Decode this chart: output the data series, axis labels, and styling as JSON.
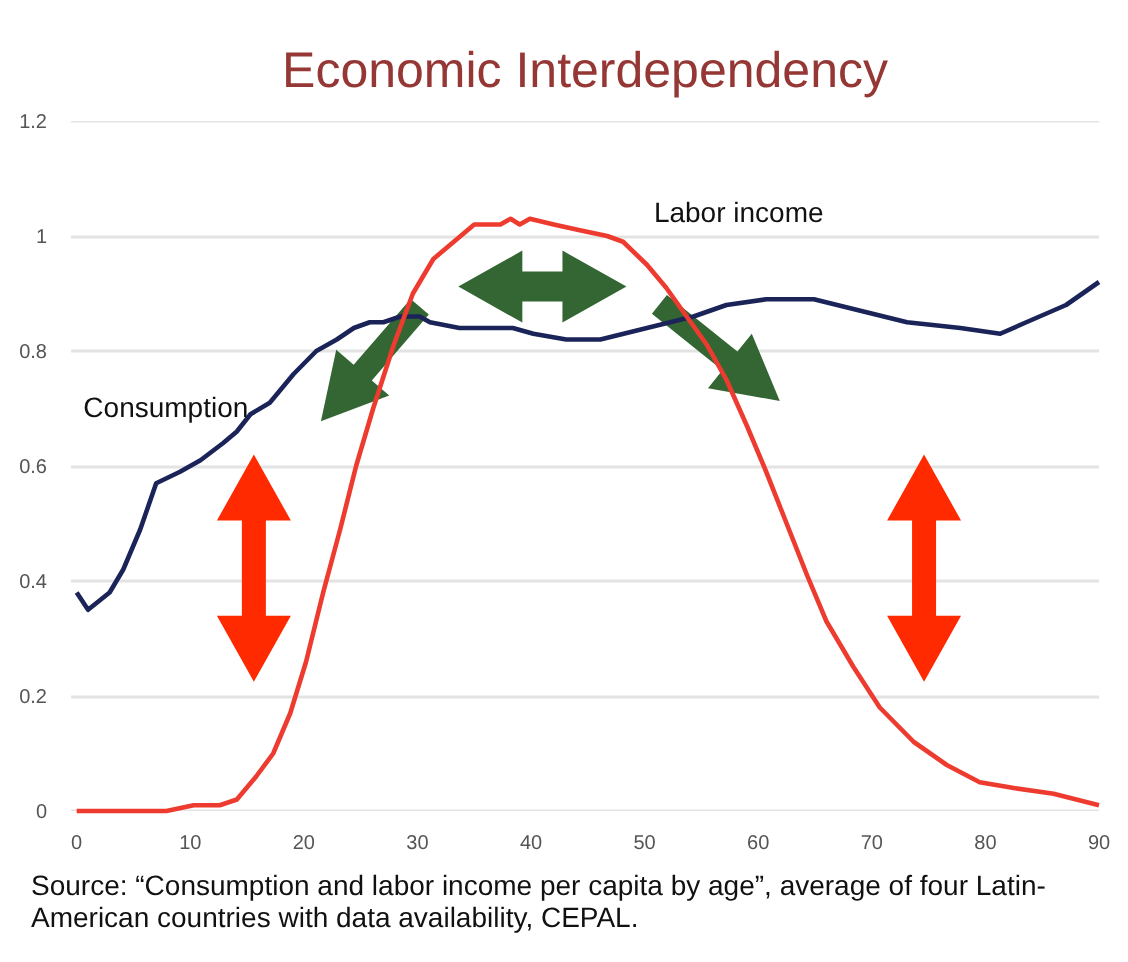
{
  "chart_data": {
    "type": "line",
    "title": "Economic Interdependency",
    "annotations": [
      "Source: “Consumption and labor income per capita by age”, average of four Latin-American countries with data availability, CEPAL."
    ],
    "series": [
      {
        "name": "Consumption",
        "color": "#1b2459",
        "x": [
          0,
          1,
          2.9,
          4.1,
          5.6,
          7,
          9.1,
          10.9,
          12.9,
          14.1,
          15.3,
          17,
          19.1,
          21.1,
          22.9,
          24.4,
          25.8,
          27,
          28.5,
          30.2,
          31.1,
          33.7,
          36.7,
          38.4,
          40.2,
          43.1,
          46.1,
          50.2,
          54.3,
          57.2,
          60.7,
          64.9,
          69,
          73.1,
          77.8,
          81.3,
          83.6,
          87.1,
          90
        ],
        "values": [
          0.38,
          0.35,
          0.38,
          0.42,
          0.49,
          0.57,
          0.59,
          0.61,
          0.64,
          0.66,
          0.69,
          0.71,
          0.76,
          0.8,
          0.82,
          0.84,
          0.85,
          0.85,
          0.86,
          0.86,
          0.85,
          0.84,
          0.84,
          0.84,
          0.83,
          0.82,
          0.82,
          0.84,
          0.86,
          0.88,
          0.89,
          0.89,
          0.87,
          0.85,
          0.84,
          0.83,
          0.85,
          0.88,
          0.92
        ]
      },
      {
        "name": "Labor income",
        "color": "#ee3b2f",
        "x": [
          0,
          7.9,
          10.3,
          12.6,
          14.1,
          15.8,
          17.3,
          18.8,
          20.2,
          21.7,
          23.2,
          24.6,
          26.1,
          27.9,
          29.6,
          31.4,
          33.2,
          35,
          37.3,
          38.2,
          39,
          39.9,
          42,
          44.3,
          46.7,
          48.1,
          50.2,
          51.9,
          53.7,
          55.5,
          57.2,
          59,
          60.7,
          62.5,
          64.3,
          66,
          68.4,
          70.7,
          73.7,
          76.6,
          79.5,
          82.5,
          86,
          90
        ],
        "values": [
          0,
          0,
          0.01,
          0.01,
          0.02,
          0.06,
          0.1,
          0.17,
          0.26,
          0.38,
          0.49,
          0.6,
          0.7,
          0.81,
          0.9,
          0.96,
          0.99,
          1.02,
          1.02,
          1.03,
          1.02,
          1.03,
          1.02,
          1.01,
          1,
          0.99,
          0.95,
          0.91,
          0.86,
          0.81,
          0.75,
          0.67,
          0.59,
          0.5,
          0.41,
          0.33,
          0.25,
          0.18,
          0.12,
          0.08,
          0.05,
          0.04,
          0.03,
          0.01
        ]
      }
    ],
    "xlim": [
      -0.5,
      90
    ],
    "ylim": [
      0,
      1.2
    ],
    "xticks": [
      0,
      10,
      20,
      30,
      40,
      50,
      60,
      70,
      80,
      90
    ],
    "yticks": [
      0,
      0.2,
      0.4,
      0.6,
      0.8,
      1,
      1.2
    ],
    "grid": "y"
  }
}
